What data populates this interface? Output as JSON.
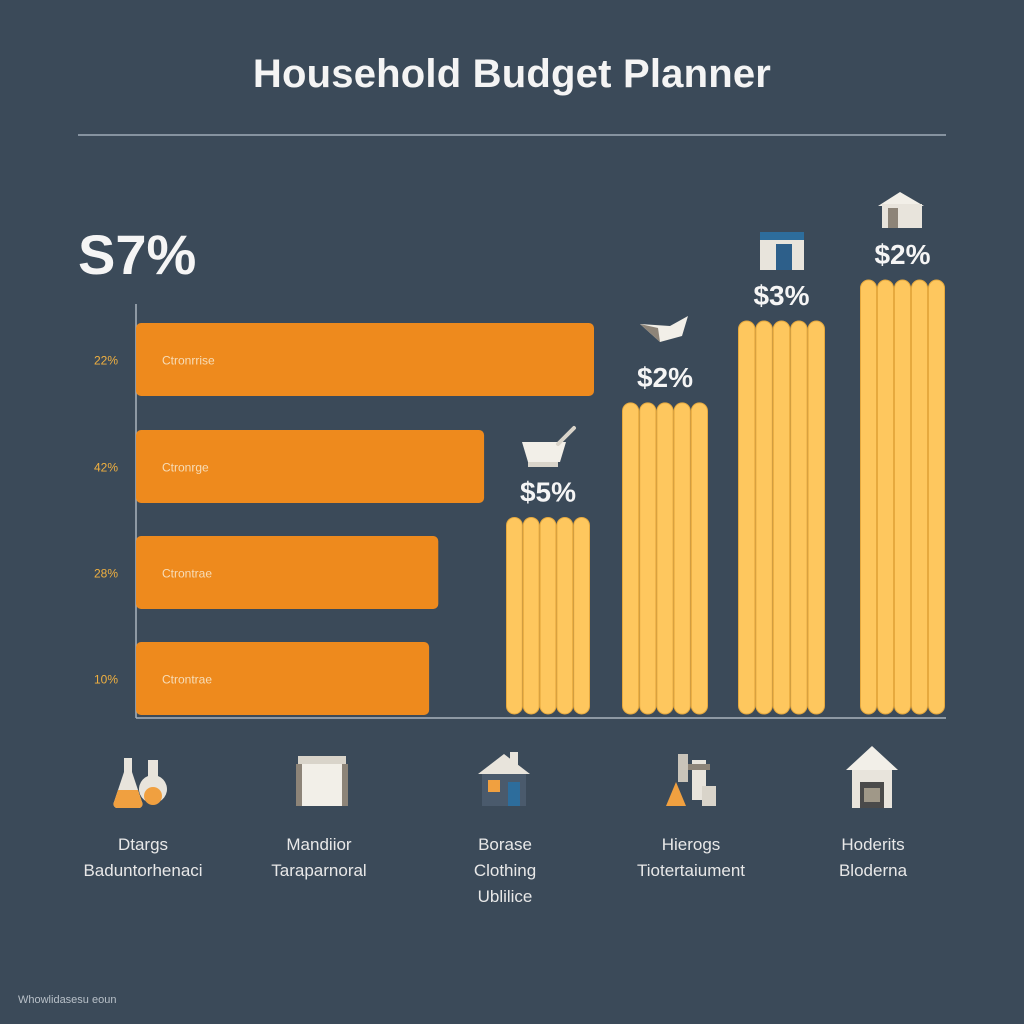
{
  "title": "Household Budget Planner",
  "big_label": "S7%",
  "footer": "Whowlidasesu eoun",
  "icons": [
    "flask-icon",
    "document-box-icon",
    "house-icon",
    "tools-icon",
    "home-icon"
  ],
  "categories": [
    {
      "lines": [
        "Dtargs",
        "Baduntorhenaci"
      ]
    },
    {
      "lines": [
        "Mandiior",
        "Taraparnoral"
      ]
    },
    {
      "lines": [
        "Borase",
        "Clothing",
        "Ublilice"
      ]
    },
    {
      "lines": [
        "Hierogs",
        "Tiotertaiument"
      ]
    },
    {
      "lines": [
        "Hoderits",
        "Bloderna"
      ]
    }
  ],
  "colors": {
    "background": "#3b4a59",
    "orange": "#ee8a1d",
    "yellow": "#fec75e",
    "text": "#f2f2f2",
    "tick": "#f0b040"
  },
  "chart_data": [
    {
      "type": "bar",
      "orientation": "horizontal",
      "categories": [
        "Ctronrrise",
        "Ctronrge",
        "Ctrontrae",
        "Ctrontrae"
      ],
      "tick_labels": [
        "22%",
        "42%",
        "28%",
        "10%"
      ],
      "values": [
        100,
        76,
        66,
        64
      ],
      "xlim": [
        0,
        100
      ]
    },
    {
      "type": "bar",
      "orientation": "vertical",
      "data_labels": [
        "$5%",
        "$2%",
        "$3%",
        "$2%"
      ],
      "values": [
        48,
        76,
        96,
        106
      ],
      "ylim": [
        0,
        106
      ],
      "icons": [
        "bowl-icon",
        "napkin-icon",
        "house-icon",
        "house-icon"
      ]
    }
  ]
}
